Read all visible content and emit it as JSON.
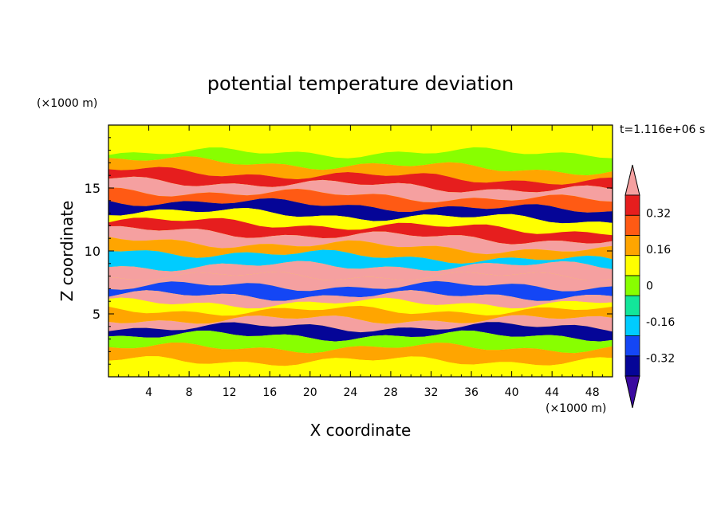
{
  "chart_data": {
    "type": "heatmap",
    "title": "potential temperature deviation",
    "xlabel": "X coordinate",
    "ylabel": "Z coordinate",
    "x_unit": "(×1000 m)",
    "y_unit": "(×1000 m)",
    "time_label": "t=1.116e+06 s",
    "xlim": [
      0,
      50
    ],
    "ylim": [
      0,
      20
    ],
    "x_ticks": [
      4,
      8,
      12,
      16,
      20,
      24,
      28,
      32,
      36,
      40,
      44,
      48
    ],
    "y_ticks": [
      5,
      10,
      15
    ],
    "colorbar": {
      "levels": [
        -0.4,
        -0.32,
        -0.24,
        -0.16,
        -0.08,
        0,
        0.08,
        0.16,
        0.24,
        0.32,
        0.4
      ],
      "tick_labels": [
        "-0.32",
        "-0.16",
        "0",
        "0.16",
        "0.32"
      ],
      "tick_values": [
        -0.32,
        -0.16,
        0,
        0.16,
        0.32
      ],
      "colors_low_to_high": [
        "#3b0aa0",
        "#050597",
        "#1446f5",
        "#00ccff",
        "#12e69a",
        "#88ff00",
        "#ffff00",
        "#ffa500",
        "#ff5a14",
        "#e61e1e",
        "#f5a0a0"
      ],
      "extend": "both"
    },
    "bands": [
      {
        "z": 19.2,
        "value": 0.02
      },
      {
        "z": 18.3,
        "value": 0.04
      },
      {
        "z": 17.3,
        "value": -0.02
      },
      {
        "z": 16.3,
        "value": 0.1
      },
      {
        "z": 15.6,
        "value": 0.3
      },
      {
        "z": 14.8,
        "value": 0.42
      },
      {
        "z": 14.0,
        "value": 0.2
      },
      {
        "z": 13.2,
        "value": -0.36
      },
      {
        "z": 12.4,
        "value": 0.06
      },
      {
        "z": 11.6,
        "value": 0.26
      },
      {
        "z": 10.8,
        "value": 0.42
      },
      {
        "z": 10.0,
        "value": 0.08
      },
      {
        "z": 9.2,
        "value": -0.2
      },
      {
        "z": 8.4,
        "value": 0.42
      },
      {
        "z": 7.6,
        "value": 0.42
      },
      {
        "z": 6.8,
        "value": -0.3
      },
      {
        "z": 6.1,
        "value": 0.34
      },
      {
        "z": 5.6,
        "value": 0.02
      },
      {
        "z": 4.9,
        "value": 0.09
      },
      {
        "z": 4.2,
        "value": 0.42
      },
      {
        "z": 3.7,
        "value": -0.36
      },
      {
        "z": 2.8,
        "value": -0.04
      },
      {
        "z": 1.8,
        "value": 0.08
      },
      {
        "z": 0.7,
        "value": 0.02
      }
    ]
  }
}
